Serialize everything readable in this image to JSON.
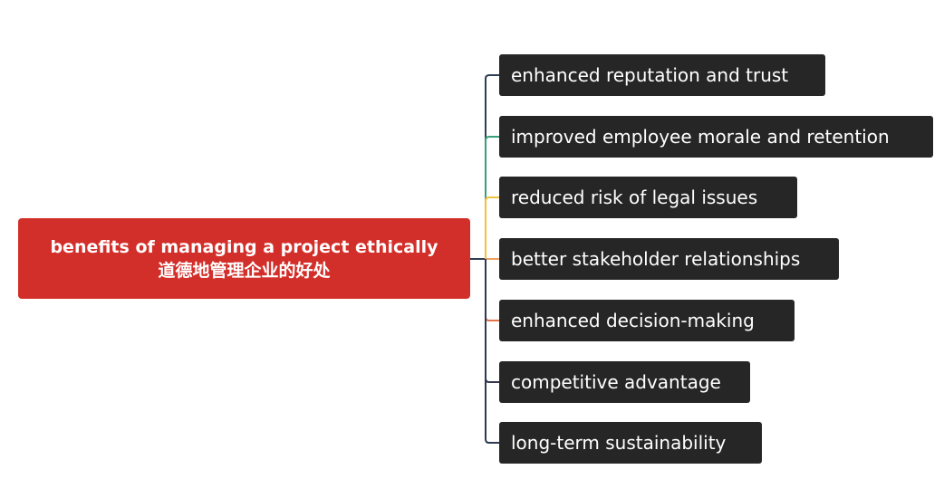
{
  "root": {
    "title": "benefits of managing a project ethically",
    "subtitle": "道德地管理企业的好处"
  },
  "children": [
    {
      "label": "enhanced reputation and trust",
      "color": "#2e3e52"
    },
    {
      "label": "improved employee morale and retention",
      "color": "#3a9e78"
    },
    {
      "label": "reduced risk of legal issues",
      "color": "#f0c040"
    },
    {
      "label": "better stakeholder relationships",
      "color": "#f0a060"
    },
    {
      "label": "enhanced decision-making",
      "color": "#e2704a"
    },
    {
      "label": "competitive advantage",
      "color": "#34344e"
    },
    {
      "label": "long-term sustainability",
      "color": "#2b3a4d"
    }
  ],
  "colors": {
    "root_fill": "#d32f2a",
    "child_fill": "#262626"
  }
}
